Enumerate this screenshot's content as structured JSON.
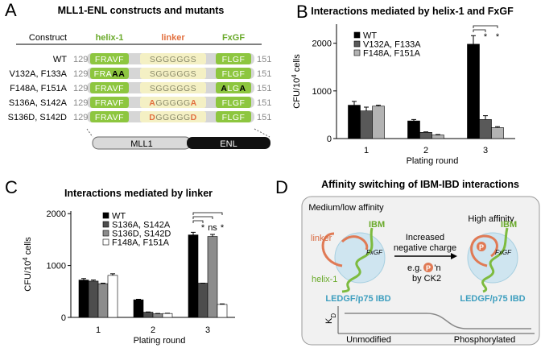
{
  "panels": {
    "a": "A",
    "b": "B",
    "c": "C",
    "d": "D"
  },
  "constructs": {
    "title": "MLL1-ENL constructs and mutants",
    "header": {
      "construct": "Construct",
      "helix": "helix-1",
      "linker": "linker",
      "fxgf": "FxGF"
    },
    "rows": [
      {
        "name": "WT",
        "start": "129",
        "end": "151",
        "helix": [
          {
            "t": "FRAVF"
          }
        ],
        "linker": [
          {
            "t": "SGGGGGS"
          }
        ],
        "fxgf": [
          {
            "t": "FLGF"
          }
        ]
      },
      {
        "name": "V132A, F133A",
        "start": "129",
        "end": "151",
        "helix": [
          {
            "t": "FRA"
          },
          {
            "t": "AA",
            "mut": true
          }
        ],
        "linker": [
          {
            "t": "SGGGGGS"
          }
        ],
        "fxgf": [
          {
            "t": "FLGF"
          }
        ]
      },
      {
        "name": "F148A, F151A",
        "start": "129",
        "end": "151",
        "helix": [
          {
            "t": "FRAVF"
          }
        ],
        "linker": [
          {
            "t": "SGGGGGS"
          }
        ],
        "fxgf": [
          {
            "t": "A",
            "mut": true
          },
          {
            "t": "LG"
          },
          {
            "t": "A",
            "mut": true
          }
        ]
      },
      {
        "name": "S136A, S142A",
        "start": "129",
        "end": "151",
        "helix": [
          {
            "t": "FRAVF"
          }
        ],
        "linker": [
          {
            "t": "A",
            "mut": true
          },
          {
            "t": "GGGGG"
          },
          {
            "t": "A",
            "mut": true
          }
        ],
        "fxgf": [
          {
            "t": "FLGF"
          }
        ]
      },
      {
        "name": "S136D, S142D",
        "start": "129",
        "end": "151",
        "helix": [
          {
            "t": "FRAVF"
          }
        ],
        "linker": [
          {
            "t": "D",
            "mut": true
          },
          {
            "t": "GGGGG"
          },
          {
            "t": "D",
            "mut": true
          }
        ],
        "fxgf": [
          {
            "t": "FLGF"
          }
        ]
      }
    ],
    "bar": {
      "left": "MLL1",
      "right": "ENL"
    }
  },
  "chart_data": [
    {
      "type": "bar",
      "title": "Interactions mediated by helix-1 and FxGF",
      "ylabel": {
        "base": "CFU/10",
        "sup": "4",
        "rest": " cells"
      },
      "xlabel": "Plating round",
      "categories": [
        "1",
        "2",
        "3"
      ],
      "series": [
        {
          "name": "WT",
          "color": "#000000",
          "values": [
            700,
            370,
            1980
          ],
          "errors": [
            80,
            30,
            180
          ]
        },
        {
          "name": "V132A, F133A",
          "color": "#595959",
          "values": [
            580,
            130,
            400
          ],
          "errors": [
            80,
            10,
            80
          ]
        },
        {
          "name": "F148A, F151A",
          "color": "#b3b3b3",
          "values": [
            680,
            75,
            230
          ],
          "errors": [
            20,
            10,
            20
          ]
        }
      ],
      "ylim": [
        0,
        2400
      ],
      "yticks": [
        0,
        1000,
        2000
      ],
      "annotations": [
        "*",
        "*"
      ]
    },
    {
      "type": "bar",
      "title": "Interactions mediated by linker",
      "ylabel": {
        "base": "CFU/10",
        "sup": "4",
        "rest": " cells"
      },
      "xlabel": "Plating round",
      "categories": [
        "1",
        "2",
        "3"
      ],
      "series": [
        {
          "name": "WT",
          "color": "#000000",
          "values": [
            720,
            340,
            1590
          ],
          "errors": [
            30,
            10,
            50
          ]
        },
        {
          "name": "S136A, S142A",
          "color": "#4d4d4d",
          "values": [
            700,
            100,
            660
          ],
          "errors": [
            20,
            5,
            0
          ]
        },
        {
          "name": "S136D, S142D",
          "color": "#8c8c8c",
          "values": [
            650,
            70,
            1560
          ],
          "errors": [
            10,
            5,
            40
          ]
        },
        {
          "name": "F148A, F151A",
          "color": "#ffffff",
          "values": [
            810,
            75,
            250
          ],
          "errors": [
            30,
            5,
            10
          ]
        }
      ],
      "ylim": [
        0,
        2050
      ],
      "yticks": [
        0,
        1000,
        2000
      ],
      "annotations": [
        "*",
        "ns",
        "*"
      ]
    }
  ],
  "switching": {
    "title": "Affinity switching of IBM-IBD interactions",
    "left_state": "Medium/low affinity",
    "right_state": "High affinity",
    "linker": "linker",
    "ibm": "IBM",
    "fxgf": "FxGF",
    "helix": "helix-1",
    "ibd": "LEDGF/p75 IBD",
    "arrow_text": [
      "Increased",
      "negative charge"
    ],
    "example": {
      "pre": "e.g. ",
      "icon": "P",
      "post": "'n",
      "line2": "by CK2"
    },
    "kd": {
      "base": "K",
      "sub": "D"
    },
    "states": [
      "Unmodified",
      "Phosphorylated"
    ]
  }
}
